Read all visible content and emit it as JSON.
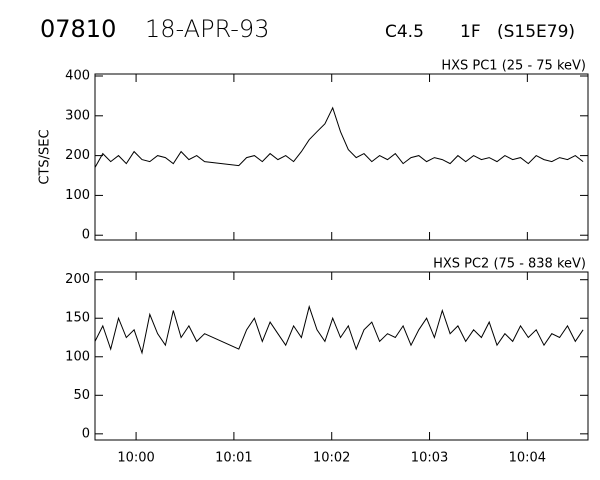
{
  "header": {
    "id": "07810",
    "date": "18-APR-93",
    "goes_class": "C4.5",
    "optical": "1F",
    "location": "(S15E79)"
  },
  "chart_data": [
    {
      "type": "line",
      "title": "HXS PC1 (25 - 75 keV)",
      "y_label": "CTS/SEC",
      "x": [
        -0.42,
        -0.34,
        -0.26,
        -0.18,
        -0.1,
        -0.02,
        0.06,
        0.14,
        0.22,
        0.3,
        0.38,
        0.46,
        0.54,
        0.62,
        0.7,
        1.05,
        1.13,
        1.21,
        1.29,
        1.37,
        1.45,
        1.53,
        1.61,
        1.69,
        1.77,
        1.85,
        1.93,
        2.01,
        2.09,
        2.17,
        2.25,
        2.33,
        2.41,
        2.49,
        2.57,
        2.65,
        2.73,
        2.81,
        2.89,
        2.97,
        3.05,
        3.13,
        3.21,
        3.29,
        3.37,
        3.45,
        3.53,
        3.61,
        3.69,
        3.77,
        3.85,
        3.93,
        4.01,
        4.09,
        4.17,
        4.25,
        4.33,
        4.41,
        4.49,
        4.57
      ],
      "series": [
        {
          "color": "#000000",
          "values": [
            170,
            205,
            185,
            200,
            180,
            210,
            190,
            185,
            200,
            195,
            180,
            210,
            190,
            200,
            185,
            175,
            195,
            200,
            185,
            205,
            190,
            200,
            185,
            210,
            240,
            260,
            280,
            320,
            260,
            215,
            195,
            205,
            185,
            200,
            190,
            205,
            180,
            195,
            200,
            185,
            195,
            190,
            180,
            200,
            185,
            200,
            190,
            195,
            185,
            200,
            190,
            195,
            180,
            200,
            190,
            185,
            195,
            190,
            200,
            185
          ]
        }
      ],
      "xlim": [
        -0.42,
        4.62
      ],
      "xticks": [
        {
          "value": 0,
          "label": "10:00"
        },
        {
          "value": 1,
          "label": "10:01"
        },
        {
          "value": 2,
          "label": "10:02"
        },
        {
          "value": 3,
          "label": "10:03"
        },
        {
          "value": 4,
          "label": "10:04"
        }
      ],
      "ylim": [
        -12,
        405
      ],
      "yticks": [
        0,
        100,
        200,
        300,
        400
      ]
    },
    {
      "type": "line",
      "title": "HXS PC2 (75 - 838 keV)",
      "x": [
        -0.42,
        -0.34,
        -0.26,
        -0.18,
        -0.1,
        -0.02,
        0.06,
        0.14,
        0.22,
        0.3,
        0.38,
        0.46,
        0.54,
        0.62,
        0.7,
        1.05,
        1.13,
        1.21,
        1.29,
        1.37,
        1.45,
        1.53,
        1.61,
        1.69,
        1.77,
        1.85,
        1.93,
        2.01,
        2.09,
        2.17,
        2.25,
        2.33,
        2.41,
        2.49,
        2.57,
        2.65,
        2.73,
        2.81,
        2.89,
        2.97,
        3.05,
        3.13,
        3.21,
        3.29,
        3.37,
        3.45,
        3.53,
        3.61,
        3.69,
        3.77,
        3.85,
        3.93,
        4.01,
        4.09,
        4.17,
        4.25,
        4.33,
        4.41,
        4.49,
        4.57
      ],
      "series": [
        {
          "color": "#000000",
          "values": [
            120,
            140,
            110,
            150,
            125,
            135,
            105,
            155,
            130,
            115,
            160,
            125,
            140,
            120,
            130,
            110,
            135,
            150,
            120,
            145,
            130,
            115,
            140,
            125,
            165,
            135,
            120,
            150,
            125,
            140,
            110,
            135,
            145,
            120,
            130,
            125,
            140,
            115,
            135,
            150,
            125,
            160,
            130,
            140,
            120,
            135,
            125,
            145,
            115,
            130,
            120,
            140,
            125,
            135,
            115,
            130,
            125,
            140,
            120,
            135
          ]
        }
      ],
      "xlim": [
        -0.42,
        4.62
      ],
      "xticks": [
        {
          "value": 0,
          "label": "10:00"
        },
        {
          "value": 1,
          "label": "10:01"
        },
        {
          "value": 2,
          "label": "10:02"
        },
        {
          "value": 3,
          "label": "10:03"
        },
        {
          "value": 4,
          "label": "10:04"
        }
      ],
      "ylim": [
        -8,
        210
      ],
      "yticks": [
        0,
        50,
        100,
        150,
        200
      ]
    }
  ]
}
